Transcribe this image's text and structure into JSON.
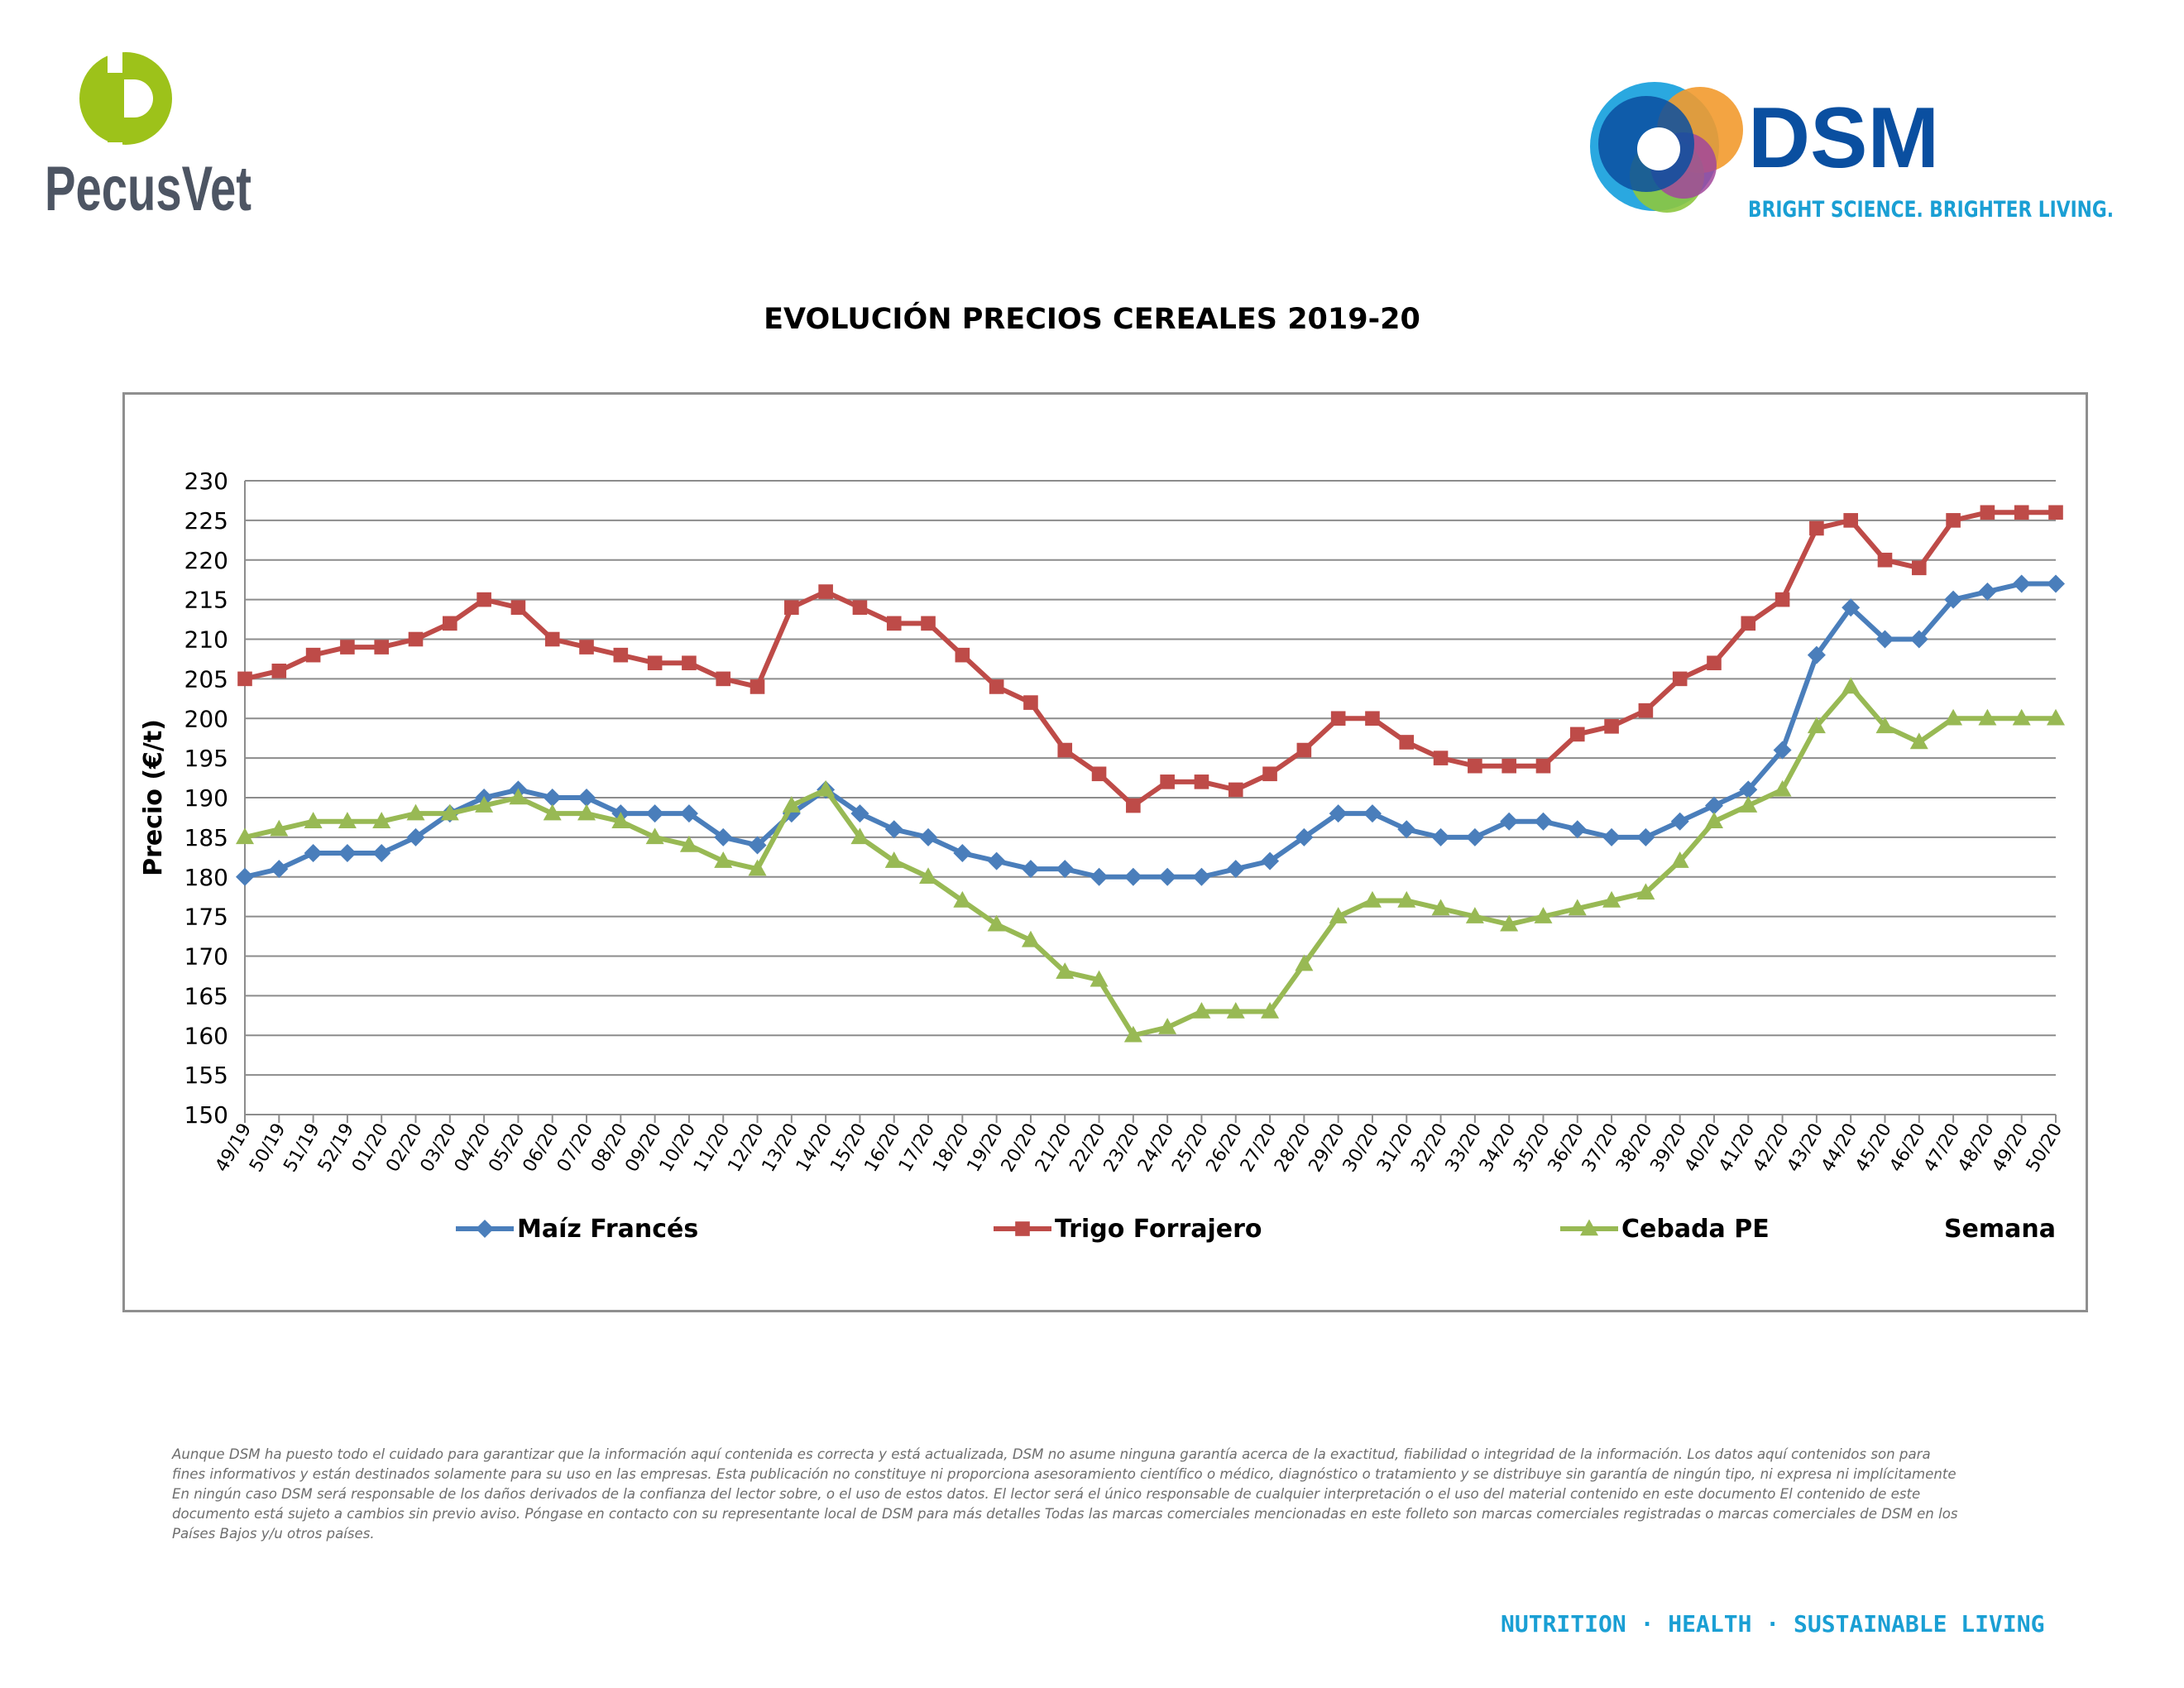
{
  "brand": {
    "pecusvet_name": "PecusVet",
    "dsm_name": "DSM",
    "dsm_tagline": "BRIGHT SCIENCE. BRIGHTER LIVING.",
    "colors": {
      "pecusvet_green": "#9dc21a",
      "pecusvet_gray": "#4d5563",
      "dsm_blue": "#0a4fa0",
      "dsm_tagline_blue": "#1a9fd4"
    }
  },
  "chart_data": {
    "type": "line",
    "title": "EVOLUCIÓN PRECIOS CEREALES 2019-20",
    "ylabel": "Precio (€/t)",
    "xlabel": "Semana",
    "ylim": [
      150,
      230
    ],
    "ytick_step": 5,
    "grid": true,
    "legend_position": "bottom",
    "categories": [
      "49/19",
      "50/19",
      "51/19",
      "52/19",
      "01/20",
      "02/20",
      "03/20",
      "04/20",
      "05/20",
      "06/20",
      "07/20",
      "08/20",
      "09/20",
      "10/20",
      "11/20",
      "12/20",
      "13/20",
      "14/20",
      "15/20",
      "16/20",
      "17/20",
      "18/20",
      "19/20",
      "20/20",
      "21/20",
      "22/20",
      "23/20",
      "24/20",
      "25/20",
      "26/20",
      "27/20",
      "28/20",
      "29/20",
      "30/20",
      "31/20",
      "32/20",
      "33/20",
      "34/20",
      "35/20",
      "36/20",
      "37/20",
      "38/20",
      "39/20",
      "40/20",
      "41/20",
      "42/20",
      "43/20",
      "44/20",
      "45/20",
      "46/20",
      "47/20",
      "48/20",
      "49/20",
      "50/20"
    ],
    "series": [
      {
        "name": "Maíz Francés",
        "color": "#4a7ebb",
        "marker": "diamond",
        "values": [
          180,
          181,
          183,
          183,
          183,
          185,
          188,
          190,
          191,
          190,
          190,
          188,
          188,
          188,
          185,
          184,
          188,
          191,
          188,
          186,
          185,
          183,
          182,
          181,
          181,
          180,
          180,
          180,
          180,
          181,
          182,
          185,
          188,
          188,
          186,
          185,
          185,
          187,
          187,
          186,
          185,
          185,
          187,
          189,
          191,
          196,
          208,
          214,
          210,
          210,
          215,
          216,
          217,
          217
        ]
      },
      {
        "name": "Trigo Forrajero",
        "color": "#be4b48",
        "marker": "square",
        "values": [
          205,
          206,
          208,
          209,
          209,
          210,
          212,
          215,
          214,
          210,
          209,
          208,
          207,
          207,
          205,
          204,
          214,
          216,
          214,
          212,
          212,
          208,
          204,
          202,
          196,
          193,
          189,
          192,
          192,
          191,
          193,
          196,
          200,
          200,
          197,
          195,
          194,
          194,
          194,
          198,
          199,
          201,
          205,
          207,
          212,
          215,
          224,
          225,
          220,
          219,
          225,
          226,
          226,
          226
        ]
      },
      {
        "name": "Cebada PE",
        "color": "#98b954",
        "marker": "triangle",
        "values": [
          185,
          186,
          187,
          187,
          187,
          188,
          188,
          189,
          190,
          188,
          188,
          187,
          185,
          184,
          182,
          181,
          189,
          191,
          185,
          182,
          180,
          177,
          174,
          172,
          168,
          167,
          160,
          161,
          163,
          163,
          163,
          169,
          175,
          177,
          177,
          176,
          175,
          174,
          175,
          176,
          177,
          178,
          182,
          187,
          189,
          191,
          199,
          204,
          199,
          197,
          200,
          200,
          200,
          200
        ]
      }
    ]
  },
  "disclaimer": "Aunque DSM ha puesto todo el cuidado para garantizar que la información aquí contenida es correcta y está actualizada, DSM no asume ninguna garantía acerca de la exactitud, fiabilidad o integridad de la información. Los datos aquí contenidos son para fines informativos y están destinados solamente para su uso en las empresas. Esta publicación no constituye ni proporciona asesoramiento científico o médico, diagnóstico o tratamiento y se distribuye sin garantía de ningún tipo, ni expresa ni implícitamente En ningún caso DSM será responsable de los daños derivados de la confianza del lector sobre, o el uso de estos datos. El lector será el único responsable de cualquier interpretación o el uso del material contenido en este documento El contenido de este documento está sujeto a cambios sin previo aviso. Póngase en contacto con su representante local de DSM para más detalles Todas las marcas comerciales mencionadas en este folleto son marcas comerciales registradas o marcas comerciales de DSM en los Países Bajos y/u otros países.",
  "footer_tagline": "NUTRITION · HEALTH · SUSTAINABLE LIVING"
}
